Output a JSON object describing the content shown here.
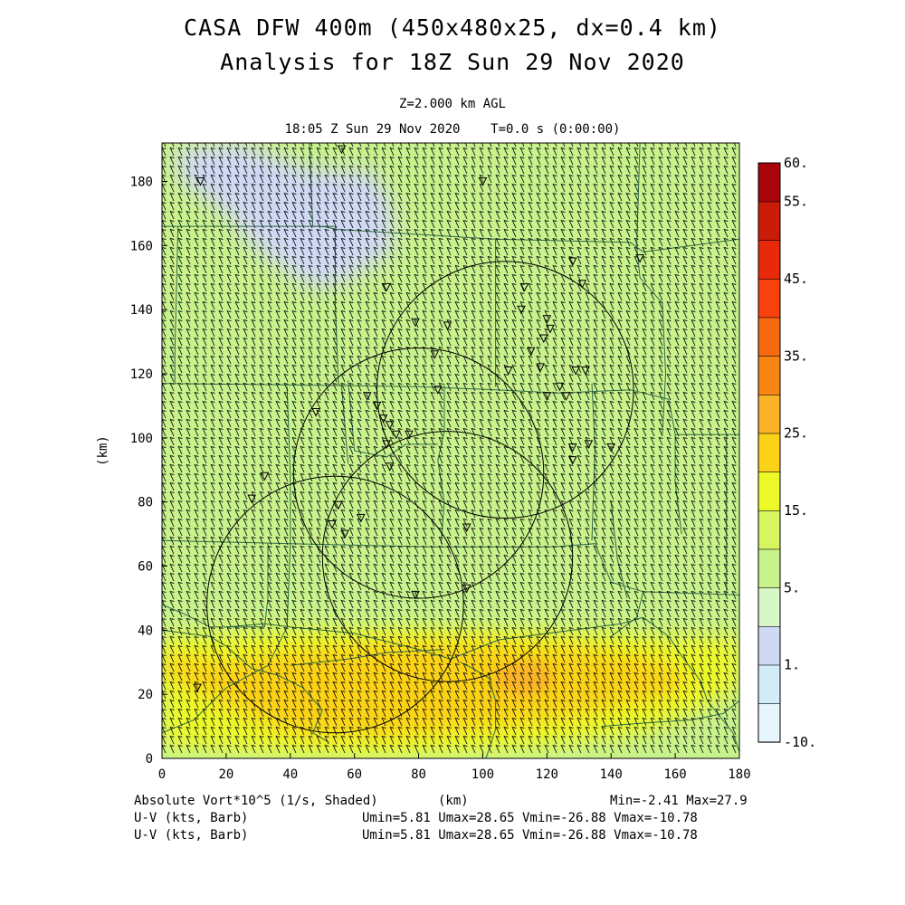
{
  "header": {
    "title_line1": "CASA DFW 400m (450x480x25, dx=0.4 km)",
    "title_line2": "Analysis for 18Z Sun 29 Nov 2020",
    "level": "Z=2.000 km AGL",
    "valid_time": "18:05 Z Sun 29 Nov 2020    T=0.0 s (0:00:00)"
  },
  "chart_data": {
    "type": "heatmap",
    "xlabel": "(km)",
    "ylabel": "(km)",
    "xlim": [
      0,
      180
    ],
    "ylim": [
      0,
      192
    ],
    "x_ticks": [
      "0",
      "20",
      "40",
      "60",
      "80",
      "100",
      "120",
      "140",
      "160",
      "180"
    ],
    "y_ticks": [
      "0",
      "20",
      "40",
      "60",
      "80",
      "100",
      "120",
      "140",
      "160",
      "180"
    ],
    "colorbar": {
      "levels": [
        -10,
        0,
        1,
        2,
        5,
        10,
        15,
        20,
        25,
        30,
        35,
        40,
        45,
        50,
        55,
        60
      ],
      "labels": [
        "-10.",
        "1.",
        "5.",
        "15.",
        "25.",
        "35.",
        "45.",
        "55.",
        "60."
      ],
      "colors": [
        "#e6f6fc",
        "#d2ecf8",
        "#d0d9f4",
        "#d8f7c6",
        "#c8f28c",
        "#d6f55e",
        "#ecf929",
        "#fcd219",
        "#fbb427",
        "#f98613",
        "#f86a10",
        "#f9410d",
        "#e82a0a",
        "#cb1c0a",
        "#a9040a"
      ]
    },
    "field_regions": [
      {
        "name": "background",
        "value": 8
      },
      {
        "name": "northwest-minimum",
        "value": 1.5
      },
      {
        "name": "south-band",
        "value": 18
      },
      {
        "name": "south-core",
        "value": 24
      },
      {
        "name": "maximum-spot",
        "value": 27.9
      }
    ],
    "radar_rings": [
      {
        "center_x": 107,
        "center_y": 115,
        "radius": 40
      },
      {
        "center_x": 80,
        "center_y": 89,
        "radius": 39
      },
      {
        "center_x": 89,
        "center_y": 63,
        "radius": 39
      },
      {
        "center_x": 54,
        "center_y": 48,
        "radius": 40
      }
    ],
    "wind_barbs_direction": "from the northwest",
    "stations": [
      [
        12,
        180
      ],
      [
        56,
        190
      ],
      [
        100,
        180
      ],
      [
        70,
        147
      ],
      [
        79,
        136
      ],
      [
        89,
        135
      ],
      [
        85,
        126
      ],
      [
        113,
        147
      ],
      [
        128,
        155
      ],
      [
        131,
        148
      ],
      [
        112,
        140
      ],
      [
        120,
        137
      ],
      [
        121,
        134
      ],
      [
        119,
        131
      ],
      [
        115,
        127
      ],
      [
        108,
        121
      ],
      [
        118,
        122
      ],
      [
        129,
        121
      ],
      [
        132,
        121
      ],
      [
        124,
        116
      ],
      [
        120,
        113
      ],
      [
        126,
        113
      ],
      [
        64,
        113
      ],
      [
        48,
        108
      ],
      [
        67,
        110
      ],
      [
        69,
        106
      ],
      [
        71,
        104
      ],
      [
        73,
        101
      ],
      [
        70,
        98
      ],
      [
        86,
        115
      ],
      [
        77,
        101
      ],
      [
        128,
        97
      ],
      [
        133,
        98
      ],
      [
        128,
        93
      ],
      [
        140,
        97
      ],
      [
        95,
        72
      ],
      [
        71,
        91
      ],
      [
        32,
        88
      ],
      [
        28,
        81
      ],
      [
        55,
        79
      ],
      [
        62,
        75
      ],
      [
        53,
        73
      ],
      [
        57,
        70
      ],
      [
        79,
        51
      ],
      [
        95,
        53
      ],
      [
        149,
        156
      ],
      [
        11,
        22
      ]
    ],
    "min": "-2.41",
    "max": "27.9"
  },
  "footer": {
    "field_label": "Absolute Vort*10^5 (1/s, Shaded)",
    "x_axis_unit": "(km)",
    "min_max": "Min=-2.41 Max=27.9",
    "barb_label_1": "U-V (kts, Barb)",
    "barb_stats_1": "Umin=5.81 Umax=28.65 Vmin=-26.88 Vmax=-10.78",
    "barb_label_2": "U-V (kts, Barb)",
    "barb_stats_2": "Umin=5.81 Umax=28.65 Vmin=-26.88 Vmax=-10.78"
  }
}
